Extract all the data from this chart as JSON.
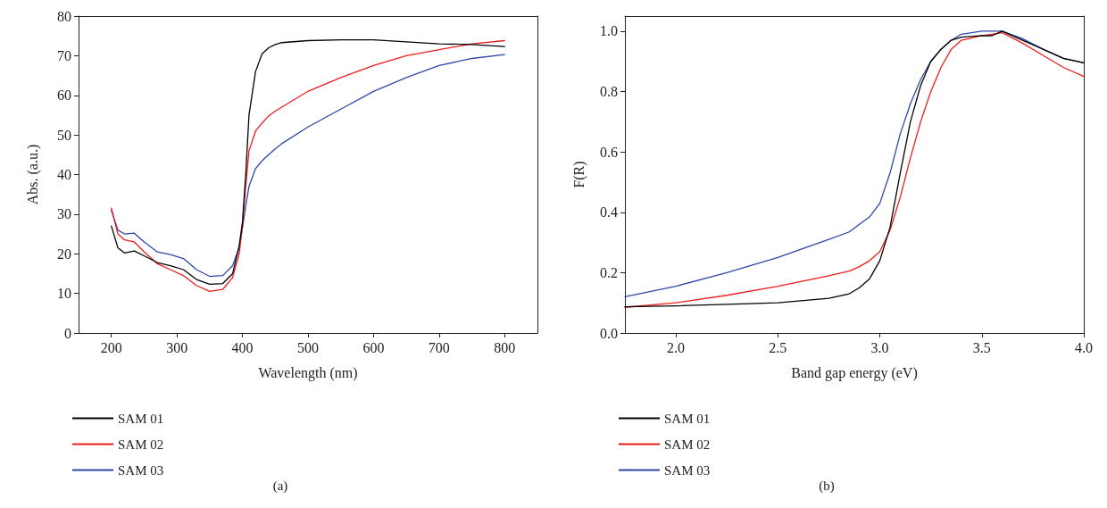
{
  "chart_data": [
    {
      "type": "line",
      "xlabel": "Wavelength (nm)",
      "ylabel": "Abs. (a.u.)",
      "annotations": [
        "(a)"
      ],
      "xlim": [
        150,
        850
      ],
      "xticks": [
        200,
        300,
        400,
        500,
        600,
        700,
        800
      ],
      "ylim": [
        0,
        80
      ],
      "yticks": [
        0,
        10,
        20,
        30,
        40,
        50,
        60,
        70,
        80
      ],
      "grid": false,
      "legend": "bottom left",
      "marker": "none",
      "line_style": "solid",
      "x": [
        200,
        210,
        220,
        235,
        250,
        270,
        290,
        310,
        330,
        350,
        370,
        385,
        395,
        400,
        405,
        410,
        420,
        430,
        440,
        450,
        460,
        500,
        550,
        600,
        650,
        700,
        750,
        800
      ],
      "series": [
        {
          "name": "SAM 01",
          "color": "#000000",
          "values": [
            27,
            21.5,
            20.2,
            20.7,
            19.5,
            17.8,
            17,
            16,
            13.5,
            12.3,
            12.5,
            15,
            22,
            28,
            40,
            55,
            66,
            70.5,
            72,
            72.8,
            73.3,
            73.8,
            74,
            74,
            73.5,
            73,
            72.8,
            72.3
          ]
        },
        {
          "name": "SAM 02",
          "color": "#ee1c1c",
          "values": [
            31.5,
            25,
            23.5,
            23,
            20.5,
            17.5,
            16,
            14.5,
            12,
            10.5,
            11,
            14,
            20,
            27,
            37,
            46,
            51,
            53,
            54.8,
            56,
            57,
            61,
            64.5,
            67.5,
            70,
            71.5,
            73,
            73.8
          ]
        },
        {
          "name": "SAM 03",
          "color": "#2e47a8",
          "values": [
            31,
            26,
            25,
            25.2,
            23,
            20.5,
            19.8,
            18.8,
            16,
            14.3,
            14.5,
            17,
            21.5,
            26.5,
            32,
            37,
            41.5,
            43.5,
            45,
            46.5,
            47.8,
            52,
            56.5,
            61,
            64.5,
            67.5,
            69.3,
            70.3
          ]
        }
      ]
    },
    {
      "type": "line",
      "xlabel": "Band gap energy (eV)",
      "ylabel": "F(R)",
      "annotations": [
        "(b)"
      ],
      "xlim": [
        1.75,
        4.0
      ],
      "xticks": [
        {
          "value": 2,
          "label": "2.0"
        },
        2.5,
        {
          "value": 3,
          "label": "3.0"
        },
        3.5,
        {
          "value": 4,
          "label": "4.0"
        }
      ],
      "ylim": [
        0,
        1.05
      ],
      "yticks": [
        {
          "value": 0,
          "label": "0.0"
        },
        0.2,
        0.4,
        0.6,
        0.8,
        {
          "value": 1,
          "label": "1.0"
        }
      ],
      "grid": false,
      "legend": "bottom left",
      "marker": "none",
      "line_style": "solid",
      "x": [
        1.75,
        2.0,
        2.25,
        2.5,
        2.75,
        2.85,
        2.9,
        2.95,
        3.0,
        3.05,
        3.1,
        3.15,
        3.2,
        3.25,
        3.3,
        3.35,
        3.4,
        3.5,
        3.55,
        3.6,
        3.7,
        3.8,
        3.9,
        4.0
      ],
      "series": [
        {
          "name": "SAM 01",
          "color": "#000000",
          "values": [
            0.087,
            0.09,
            0.095,
            0.1,
            0.115,
            0.13,
            0.15,
            0.18,
            0.24,
            0.35,
            0.53,
            0.7,
            0.82,
            0.9,
            0.94,
            0.97,
            0.98,
            0.985,
            0.985,
            1.0,
            0.97,
            0.94,
            0.91,
            0.895
          ]
        },
        {
          "name": "SAM 02",
          "color": "#ee1c1c",
          "values": [
            0.085,
            0.1,
            0.125,
            0.155,
            0.19,
            0.205,
            0.22,
            0.24,
            0.27,
            0.34,
            0.45,
            0.58,
            0.7,
            0.8,
            0.88,
            0.94,
            0.97,
            0.985,
            0.99,
            0.995,
            0.96,
            0.92,
            0.88,
            0.85
          ]
        },
        {
          "name": "SAM 03",
          "color": "#2e47a8",
          "values": [
            0.12,
            0.155,
            0.2,
            0.25,
            0.31,
            0.335,
            0.36,
            0.385,
            0.43,
            0.53,
            0.66,
            0.76,
            0.84,
            0.9,
            0.94,
            0.97,
            0.99,
            1.0,
            1.0,
            1.0,
            0.975,
            0.94,
            0.91,
            0.895
          ]
        }
      ]
    }
  ]
}
